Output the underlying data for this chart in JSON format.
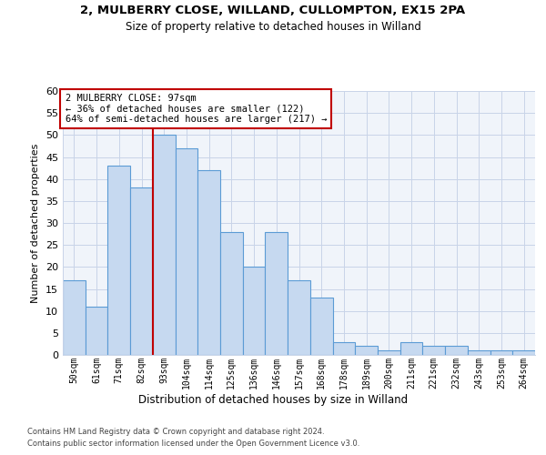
{
  "title1": "2, MULBERRY CLOSE, WILLAND, CULLOMPTON, EX15 2PA",
  "title2": "Size of property relative to detached houses in Willand",
  "xlabel": "Distribution of detached houses by size in Willand",
  "ylabel": "Number of detached properties",
  "bar_labels": [
    "50sqm",
    "61sqm",
    "71sqm",
    "82sqm",
    "93sqm",
    "104sqm",
    "114sqm",
    "125sqm",
    "136sqm",
    "146sqm",
    "157sqm",
    "168sqm",
    "178sqm",
    "189sqm",
    "200sqm",
    "211sqm",
    "221sqm",
    "232sqm",
    "243sqm",
    "253sqm",
    "264sqm"
  ],
  "bar_values": [
    17,
    11,
    43,
    38,
    50,
    47,
    42,
    28,
    20,
    28,
    17,
    13,
    3,
    2,
    1,
    3,
    2,
    2,
    1,
    1,
    1
  ],
  "bar_color": "#c6d9f0",
  "bar_edgecolor": "#5b9bd5",
  "annotation_line": "2 MULBERRY CLOSE: 97sqm",
  "annotation_line2": "← 36% of detached houses are smaller (122)",
  "annotation_line3": "64% of semi-detached houses are larger (217) →",
  "vline_color": "#c00000",
  "annotation_box_edgecolor": "#c00000",
  "ylim": [
    0,
    60
  ],
  "yticks": [
    0,
    5,
    10,
    15,
    20,
    25,
    30,
    35,
    40,
    45,
    50,
    55,
    60
  ],
  "background_color": "#f0f4fa",
  "grid_color": "#c8d4e8",
  "footer1": "Contains HM Land Registry data © Crown copyright and database right 2024.",
  "footer2": "Contains public sector information licensed under the Open Government Licence v3.0."
}
